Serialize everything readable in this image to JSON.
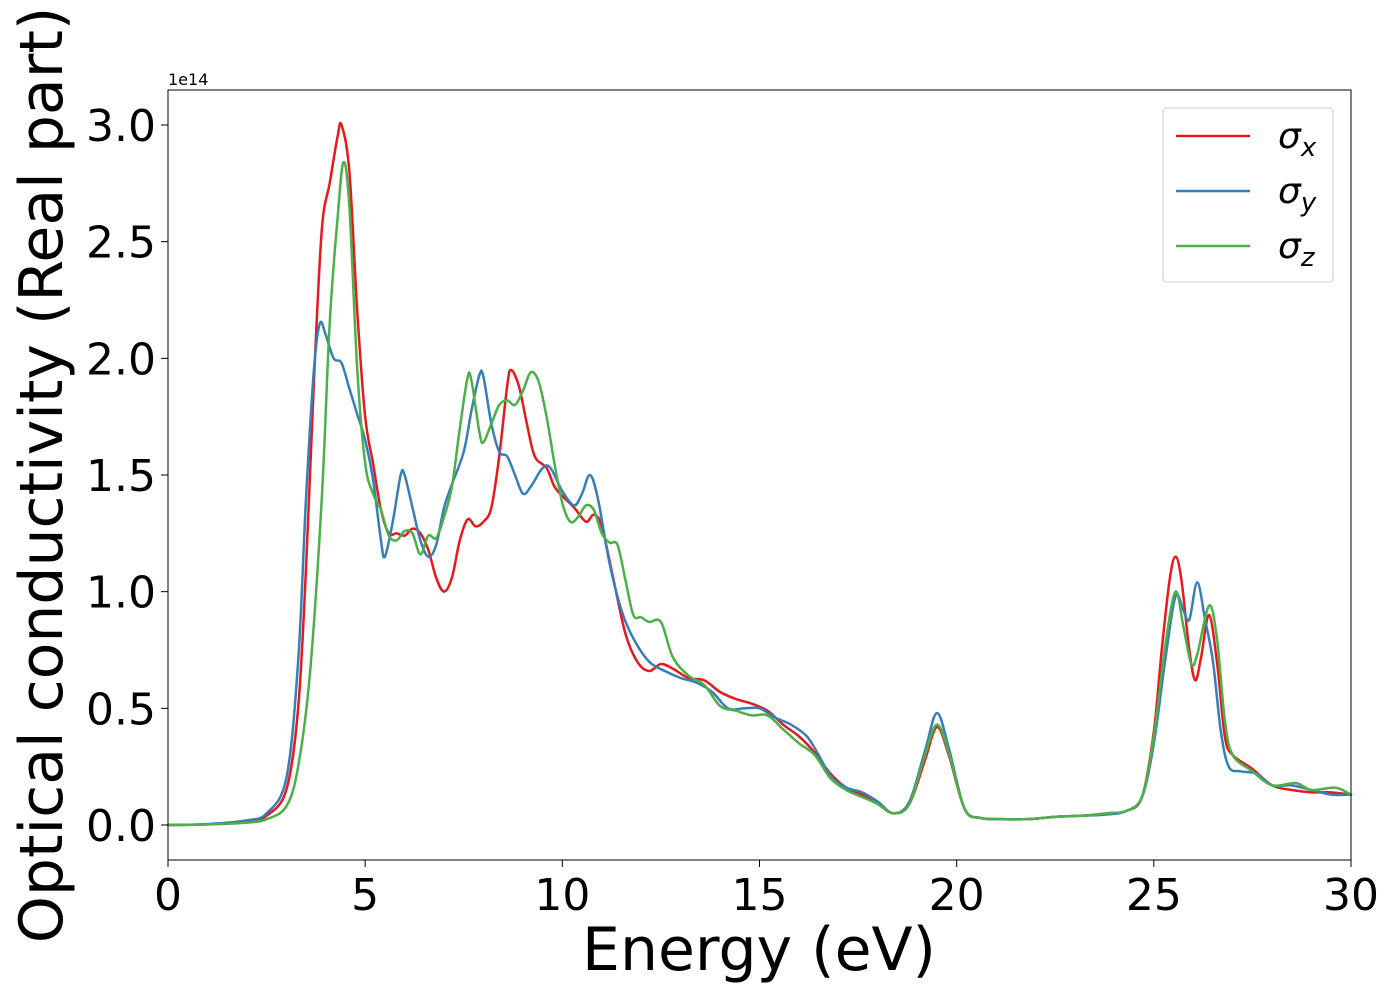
{
  "chart_data": {
    "type": "line",
    "xlabel": "Energy (eV)",
    "ylabel": "Optical conductivity (Real part)",
    "y_offset_label": "1e14",
    "xlim": [
      0,
      30
    ],
    "ylim": [
      -0.15,
      3.15
    ],
    "x_ticks": [
      0,
      5,
      10,
      15,
      20,
      25,
      30
    ],
    "x_tick_labels": [
      "0",
      "5",
      "10",
      "15",
      "20",
      "25",
      "30"
    ],
    "y_ticks": [
      0.0,
      0.5,
      1.0,
      1.5,
      2.0,
      2.5,
      3.0
    ],
    "y_tick_labels": [
      "0.0",
      "0.5",
      "1.0",
      "1.5",
      "2.0",
      "2.5",
      "3.0"
    ],
    "grid": false,
    "legend_position": "top-right",
    "series": [
      {
        "name": "σx",
        "symbol": "σ",
        "subscript": "x",
        "color": "#e41a1c",
        "points": [
          [
            0,
            0
          ],
          [
            1,
            0.003
          ],
          [
            2,
            0.015
          ],
          [
            2.5,
            0.04
          ],
          [
            3,
            0.15
          ],
          [
            3.3,
            0.5
          ],
          [
            3.5,
            1.1
          ],
          [
            3.7,
            1.9
          ],
          [
            3.9,
            2.55
          ],
          [
            4.1,
            2.75
          ],
          [
            4.3,
            2.95
          ],
          [
            4.4,
            3.0
          ],
          [
            4.6,
            2.8
          ],
          [
            4.8,
            2.2
          ],
          [
            5.0,
            1.75
          ],
          [
            5.2,
            1.55
          ],
          [
            5.4,
            1.35
          ],
          [
            5.6,
            1.25
          ],
          [
            5.8,
            1.25
          ],
          [
            6.0,
            1.24
          ],
          [
            6.2,
            1.27
          ],
          [
            6.4,
            1.25
          ],
          [
            6.6,
            1.18
          ],
          [
            6.8,
            1.06
          ],
          [
            7.0,
            1.0
          ],
          [
            7.2,
            1.06
          ],
          [
            7.4,
            1.22
          ],
          [
            7.6,
            1.31
          ],
          [
            7.8,
            1.28
          ],
          [
            8.0,
            1.3
          ],
          [
            8.2,
            1.36
          ],
          [
            8.4,
            1.58
          ],
          [
            8.6,
            1.88
          ],
          [
            8.7,
            1.95
          ],
          [
            8.9,
            1.88
          ],
          [
            9.1,
            1.72
          ],
          [
            9.3,
            1.58
          ],
          [
            9.6,
            1.53
          ],
          [
            9.8,
            1.45
          ],
          [
            10.0,
            1.41
          ],
          [
            10.3,
            1.36
          ],
          [
            10.6,
            1.3
          ],
          [
            10.8,
            1.33
          ],
          [
            11.0,
            1.28
          ],
          [
            11.3,
            1.05
          ],
          [
            11.6,
            0.82
          ],
          [
            11.9,
            0.7
          ],
          [
            12.2,
            0.66
          ],
          [
            12.5,
            0.69
          ],
          [
            12.8,
            0.67
          ],
          [
            13.2,
            0.63
          ],
          [
            13.6,
            0.62
          ],
          [
            14.0,
            0.57
          ],
          [
            14.4,
            0.54
          ],
          [
            14.8,
            0.52
          ],
          [
            15.2,
            0.49
          ],
          [
            15.6,
            0.43
          ],
          [
            16.0,
            0.38
          ],
          [
            16.4,
            0.31
          ],
          [
            16.8,
            0.22
          ],
          [
            17.2,
            0.16
          ],
          [
            17.6,
            0.13
          ],
          [
            18.0,
            0.09
          ],
          [
            18.4,
            0.05
          ],
          [
            18.8,
            0.09
          ],
          [
            19.2,
            0.28
          ],
          [
            19.5,
            0.42
          ],
          [
            19.8,
            0.3
          ],
          [
            20.2,
            0.07
          ],
          [
            20.6,
            0.03
          ],
          [
            21.2,
            0.025
          ],
          [
            21.8,
            0.025
          ],
          [
            22.5,
            0.035
          ],
          [
            23.2,
            0.04
          ],
          [
            23.8,
            0.05
          ],
          [
            24.3,
            0.06
          ],
          [
            24.7,
            0.12
          ],
          [
            25.0,
            0.4
          ],
          [
            25.2,
            0.75
          ],
          [
            25.4,
            1.05
          ],
          [
            25.55,
            1.15
          ],
          [
            25.7,
            1.05
          ],
          [
            25.9,
            0.75
          ],
          [
            26.05,
            0.62
          ],
          [
            26.2,
            0.72
          ],
          [
            26.4,
            0.9
          ],
          [
            26.6,
            0.7
          ],
          [
            26.8,
            0.38
          ],
          [
            27.0,
            0.3
          ],
          [
            27.5,
            0.24
          ],
          [
            28.0,
            0.17
          ],
          [
            28.5,
            0.15
          ],
          [
            29.0,
            0.14
          ],
          [
            29.5,
            0.14
          ],
          [
            30,
            0.13
          ]
        ]
      },
      {
        "name": "σy",
        "symbol": "σ",
        "subscript": "y",
        "color": "#377eb8",
        "points": [
          [
            0,
            0
          ],
          [
            1,
            0.004
          ],
          [
            2,
            0.02
          ],
          [
            2.5,
            0.05
          ],
          [
            3,
            0.2
          ],
          [
            3.3,
            0.7
          ],
          [
            3.5,
            1.4
          ],
          [
            3.7,
            1.95
          ],
          [
            3.85,
            2.15
          ],
          [
            4.0,
            2.1
          ],
          [
            4.2,
            2.0
          ],
          [
            4.4,
            1.98
          ],
          [
            4.6,
            1.87
          ],
          [
            4.8,
            1.76
          ],
          [
            5.0,
            1.65
          ],
          [
            5.2,
            1.48
          ],
          [
            5.4,
            1.22
          ],
          [
            5.5,
            1.15
          ],
          [
            5.7,
            1.3
          ],
          [
            5.9,
            1.5
          ],
          [
            6.0,
            1.5
          ],
          [
            6.2,
            1.36
          ],
          [
            6.4,
            1.22
          ],
          [
            6.6,
            1.15
          ],
          [
            6.8,
            1.2
          ],
          [
            7.0,
            1.36
          ],
          [
            7.2,
            1.46
          ],
          [
            7.5,
            1.6
          ],
          [
            7.7,
            1.78
          ],
          [
            7.9,
            1.93
          ],
          [
            8.0,
            1.92
          ],
          [
            8.2,
            1.72
          ],
          [
            8.4,
            1.6
          ],
          [
            8.6,
            1.58
          ],
          [
            8.8,
            1.5
          ],
          [
            9.0,
            1.42
          ],
          [
            9.2,
            1.45
          ],
          [
            9.5,
            1.53
          ],
          [
            9.7,
            1.53
          ],
          [
            10.0,
            1.43
          ],
          [
            10.3,
            1.37
          ],
          [
            10.5,
            1.42
          ],
          [
            10.7,
            1.5
          ],
          [
            10.9,
            1.4
          ],
          [
            11.2,
            1.12
          ],
          [
            11.5,
            0.92
          ],
          [
            11.8,
            0.8
          ],
          [
            12.2,
            0.7
          ],
          [
            12.6,
            0.66
          ],
          [
            13.0,
            0.63
          ],
          [
            13.4,
            0.61
          ],
          [
            13.8,
            0.57
          ],
          [
            14.2,
            0.5
          ],
          [
            14.6,
            0.5
          ],
          [
            15.0,
            0.5
          ],
          [
            15.4,
            0.46
          ],
          [
            15.8,
            0.43
          ],
          [
            16.2,
            0.38
          ],
          [
            16.5,
            0.3
          ],
          [
            16.8,
            0.21
          ],
          [
            17.2,
            0.16
          ],
          [
            17.6,
            0.14
          ],
          [
            18.0,
            0.1
          ],
          [
            18.4,
            0.05
          ],
          [
            18.8,
            0.1
          ],
          [
            19.2,
            0.32
          ],
          [
            19.5,
            0.48
          ],
          [
            19.8,
            0.33
          ],
          [
            20.2,
            0.07
          ],
          [
            20.6,
            0.03
          ],
          [
            21.2,
            0.025
          ],
          [
            21.8,
            0.025
          ],
          [
            22.5,
            0.035
          ],
          [
            23.2,
            0.04
          ],
          [
            23.8,
            0.045
          ],
          [
            24.3,
            0.06
          ],
          [
            24.7,
            0.12
          ],
          [
            25.0,
            0.35
          ],
          [
            25.3,
            0.72
          ],
          [
            25.55,
            0.98
          ],
          [
            25.75,
            0.92
          ],
          [
            25.9,
            0.88
          ],
          [
            26.1,
            1.04
          ],
          [
            26.3,
            0.88
          ],
          [
            26.5,
            0.7
          ],
          [
            26.7,
            0.4
          ],
          [
            26.9,
            0.25
          ],
          [
            27.2,
            0.23
          ],
          [
            27.6,
            0.22
          ],
          [
            28.0,
            0.17
          ],
          [
            28.5,
            0.17
          ],
          [
            29.0,
            0.15
          ],
          [
            29.5,
            0.13
          ],
          [
            30,
            0.13
          ]
        ]
      },
      {
        "name": "σz",
        "symbol": "σ",
        "subscript": "z",
        "color": "#4daf4a",
        "points": [
          [
            0,
            0
          ],
          [
            1,
            0.002
          ],
          [
            2,
            0.01
          ],
          [
            2.5,
            0.025
          ],
          [
            3,
            0.08
          ],
          [
            3.3,
            0.25
          ],
          [
            3.6,
            0.65
          ],
          [
            3.9,
            1.4
          ],
          [
            4.1,
            2.15
          ],
          [
            4.3,
            2.6
          ],
          [
            4.45,
            2.84
          ],
          [
            4.6,
            2.65
          ],
          [
            4.8,
            1.95
          ],
          [
            5.0,
            1.55
          ],
          [
            5.2,
            1.42
          ],
          [
            5.4,
            1.35
          ],
          [
            5.6,
            1.24
          ],
          [
            5.8,
            1.22
          ],
          [
            6.0,
            1.26
          ],
          [
            6.2,
            1.25
          ],
          [
            6.4,
            1.16
          ],
          [
            6.6,
            1.24
          ],
          [
            6.8,
            1.23
          ],
          [
            7.0,
            1.32
          ],
          [
            7.2,
            1.45
          ],
          [
            7.4,
            1.7
          ],
          [
            7.6,
            1.92
          ],
          [
            7.7,
            1.9
          ],
          [
            7.9,
            1.68
          ],
          [
            8.0,
            1.64
          ],
          [
            8.2,
            1.72
          ],
          [
            8.4,
            1.8
          ],
          [
            8.6,
            1.82
          ],
          [
            8.8,
            1.8
          ],
          [
            9.0,
            1.86
          ],
          [
            9.2,
            1.94
          ],
          [
            9.4,
            1.9
          ],
          [
            9.6,
            1.75
          ],
          [
            9.8,
            1.55
          ],
          [
            10.0,
            1.38
          ],
          [
            10.2,
            1.3
          ],
          [
            10.4,
            1.32
          ],
          [
            10.6,
            1.37
          ],
          [
            10.8,
            1.35
          ],
          [
            11.0,
            1.25
          ],
          [
            11.2,
            1.21
          ],
          [
            11.4,
            1.2
          ],
          [
            11.6,
            1.05
          ],
          [
            11.8,
            0.9
          ],
          [
            12.0,
            0.89
          ],
          [
            12.2,
            0.87
          ],
          [
            12.5,
            0.87
          ],
          [
            12.8,
            0.72
          ],
          [
            13.2,
            0.64
          ],
          [
            13.6,
            0.6
          ],
          [
            14.0,
            0.51
          ],
          [
            14.4,
            0.49
          ],
          [
            14.8,
            0.47
          ],
          [
            15.2,
            0.47
          ],
          [
            15.6,
            0.41
          ],
          [
            16.0,
            0.35
          ],
          [
            16.4,
            0.3
          ],
          [
            16.8,
            0.2
          ],
          [
            17.2,
            0.15
          ],
          [
            17.6,
            0.12
          ],
          [
            18.0,
            0.09
          ],
          [
            18.4,
            0.05
          ],
          [
            18.8,
            0.09
          ],
          [
            19.2,
            0.3
          ],
          [
            19.5,
            0.43
          ],
          [
            19.8,
            0.31
          ],
          [
            20.2,
            0.07
          ],
          [
            20.6,
            0.03
          ],
          [
            21.2,
            0.025
          ],
          [
            21.8,
            0.025
          ],
          [
            22.5,
            0.035
          ],
          [
            23.2,
            0.04
          ],
          [
            23.8,
            0.05
          ],
          [
            24.3,
            0.06
          ],
          [
            24.7,
            0.12
          ],
          [
            25.0,
            0.38
          ],
          [
            25.3,
            0.78
          ],
          [
            25.55,
            1.0
          ],
          [
            25.75,
            0.85
          ],
          [
            25.95,
            0.69
          ],
          [
            26.1,
            0.73
          ],
          [
            26.4,
            0.94
          ],
          [
            26.6,
            0.8
          ],
          [
            26.8,
            0.45
          ],
          [
            27.0,
            0.3
          ],
          [
            27.5,
            0.23
          ],
          [
            28.0,
            0.17
          ],
          [
            28.6,
            0.18
          ],
          [
            29.0,
            0.15
          ],
          [
            29.6,
            0.16
          ],
          [
            30,
            0.13
          ]
        ]
      }
    ]
  }
}
